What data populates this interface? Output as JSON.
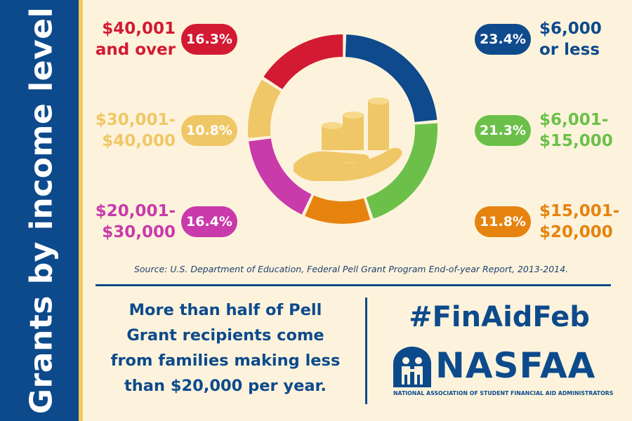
{
  "sidebar": {
    "title": "Grants by income level"
  },
  "chart_data": {
    "type": "pie",
    "style": "donut",
    "center_icon": "hand-holding-coins-icon",
    "slices": [
      {
        "category_lines": [
          "$6,000",
          "or less"
        ],
        "value": 23.4,
        "value_label": "23.4%",
        "color": "#0e4a8c"
      },
      {
        "category_lines": [
          "$6,001-",
          "$15,000"
        ],
        "value": 21.3,
        "value_label": "21.3%",
        "color": "#6cc04a"
      },
      {
        "category_lines": [
          "$15,001-",
          "$20,000"
        ],
        "value": 11.8,
        "value_label": "11.8%",
        "color": "#e6830f"
      },
      {
        "category_lines": [
          "$20,001-",
          "$30,000"
        ],
        "value": 16.4,
        "value_label": "16.4%",
        "color": "#c93aab"
      },
      {
        "category_lines": [
          "$30,001-",
          "$40,000"
        ],
        "value": 10.8,
        "value_label": "10.8%",
        "color": "#f0c766"
      },
      {
        "category_lines": [
          "$40,001",
          "and over"
        ],
        "value": 16.3,
        "value_label": "16.3%",
        "color": "#d21a32"
      }
    ]
  },
  "source": "Source: U.S. Department of Education, Federal Pell Grant Program End-of-year Report, 2013-2014.",
  "summary": [
    "More than half of Pell",
    "Grant recipients come",
    "from families making less",
    "than $20,000 per year."
  ],
  "hashtag": "#FinAidFeb",
  "logo": {
    "name": "NASFAA",
    "subtitle": "NATIONAL ASSOCIATION OF STUDENT FINANCIAL AID ADMINISTRATORS",
    "icon": "nasfaa-figures-icon"
  }
}
